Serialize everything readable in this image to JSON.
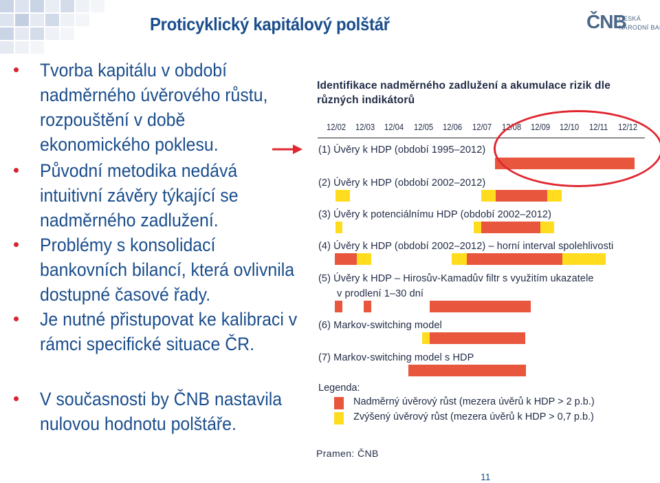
{
  "slide": {
    "title": "Proticyklický kapitálový polštář",
    "page_number": "11"
  },
  "logo": {
    "mark": "ČNB",
    "line1": "ČESKÁ",
    "line2": "NÁRODNÍ BANKA"
  },
  "bullets": [
    "Tvorba kapitálu v období\nnadměrného úvěrového růstu,\nrozpouštění v době\nekonomického poklesu.",
    "Původní metodika nedává\nintuitivní závěry týkající se\nnadměrného zadlužení.",
    "Problémy s konsolidací\nbankovních bilancí, která ovlivnila\ndostupné časové řady.",
    "Je nutné přistupovat ke kalibraci v\nrámci specifické situace ČR.",
    "V současnosti by ČNB nastavila\nnulovou hodnotu polštáře."
  ],
  "panel": {
    "title_line1": "Identifikace nadměrného zadlužení a akumulace rizik dle",
    "title_line2": "různých indikátorů",
    "ticks": [
      "12/02",
      "12/03",
      "12/04",
      "12/05",
      "12/06",
      "12/07",
      "12/08",
      "12/09",
      "12/10",
      "12/11",
      "12/12"
    ],
    "rows": [
      {
        "label": "(1)  Úvěry k HDP (období 1995–2012)",
        "label2": ""
      },
      {
        "label": "(2)  Úvěry k HDP (období 2002–2012)",
        "label2": ""
      },
      {
        "label": "(3)  Úvěry k potenciálnímu HDP (období 2002–2012)",
        "label2": ""
      },
      {
        "label": "(4)  Úvěry k HDP (období 2002–2012) – horní interval spolehlivosti",
        "label2": ""
      },
      {
        "label": "(5)  Úvěry k HDP – Hirosův-Kamadův filtr s využitím ukazatele",
        "label2": "v prodlení 1–30 dní"
      },
      {
        "label": "(6)  Markov-switching model",
        "label2": ""
      },
      {
        "label": "(7)  Markov-switching model s HDP",
        "label2": ""
      }
    ],
    "legend_title": "Legenda:",
    "legend_red": "Nadměrný úvěrový růst (mezera úvěrů k HDP > 2 p.b.)",
    "legend_yellow": "Zvýšený úvěrový růst (mezera úvěrů k HDP > 0,7 p.b.)",
    "source": "Pramen: ČNB"
  },
  "colors": {
    "title_blue": "#1a4d8c",
    "bullet_red": "#d9232f",
    "bar_red": "#e8563d",
    "bar_yellow": "#ffdd1e",
    "highlight_oval": "#e02731"
  }
}
